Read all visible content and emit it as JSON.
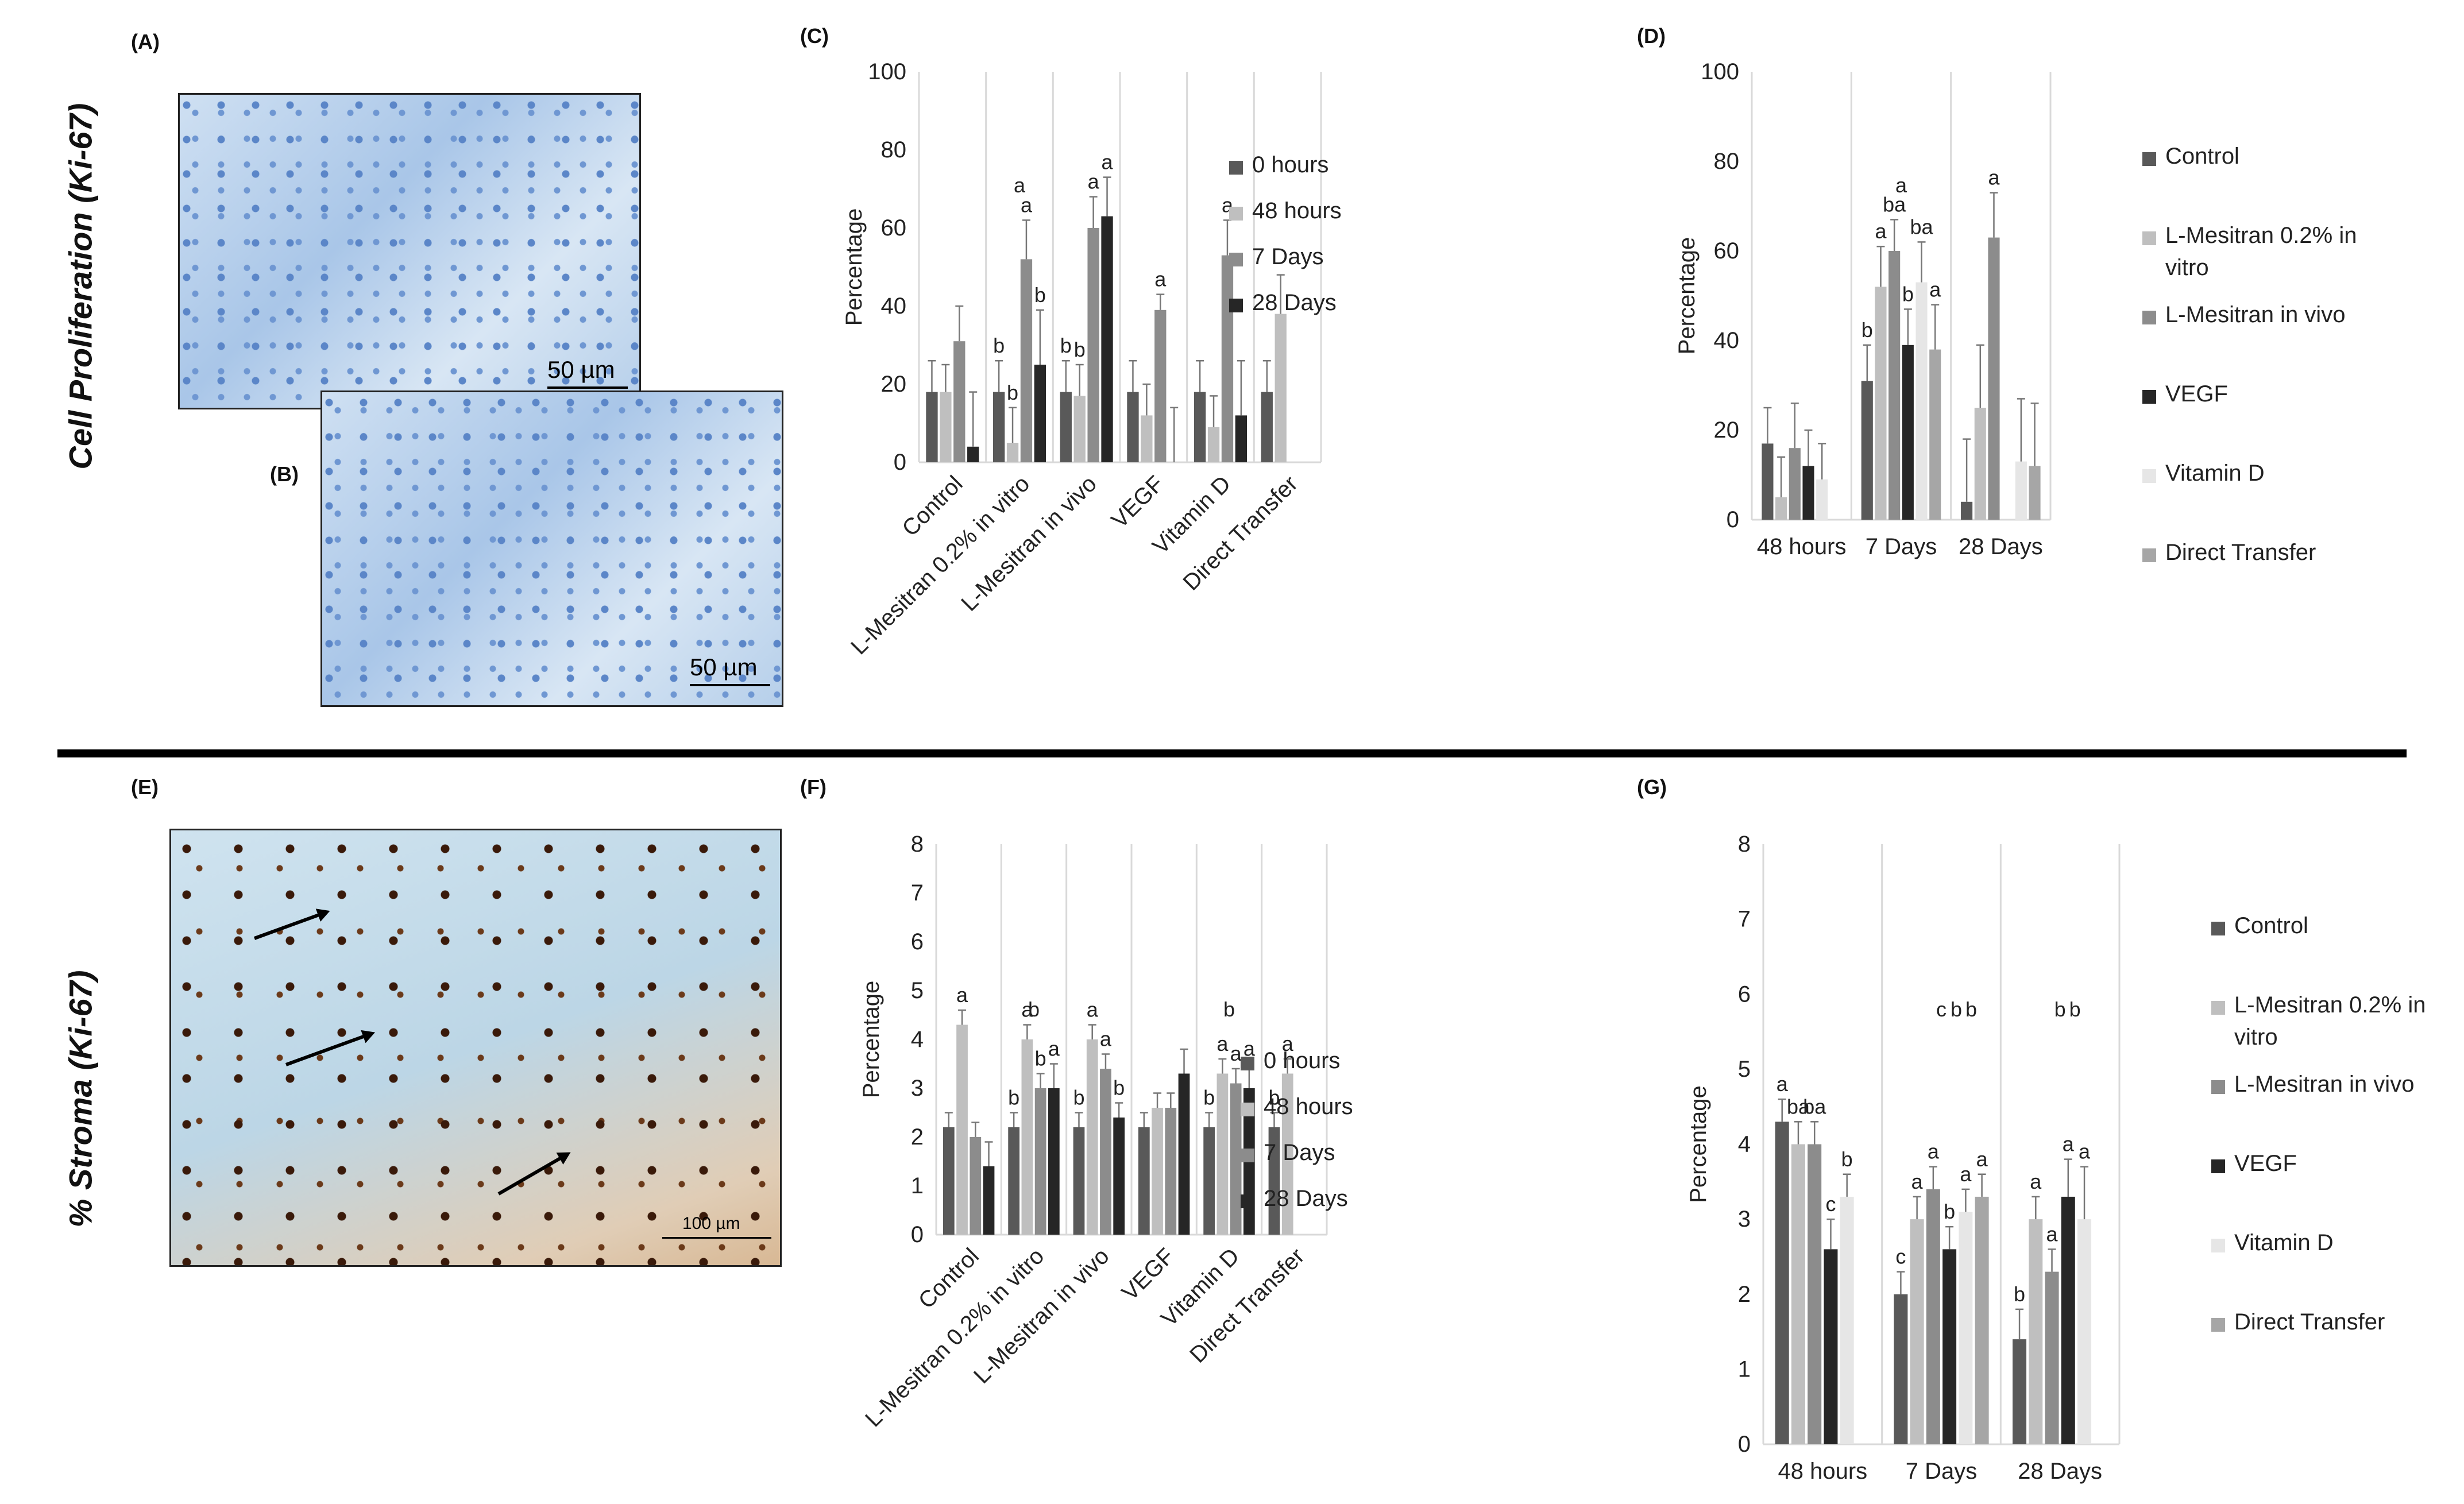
{
  "figure": {
    "panel_labels": [
      "(A)",
      "(B)",
      "(C)",
      "(D)",
      "(E)",
      "(F)",
      "(G)"
    ],
    "side_titles": [
      "Cell Proliferation (Ki-67)",
      "% Stroma (Ki-67)"
    ],
    "scale_labels": {
      "a": "50 µm",
      "b": "50 µm",
      "e": "100 µm"
    }
  },
  "chart_data": [
    {
      "id": "C",
      "type": "bar",
      "ylabel": "Percentage",
      "ylim": [
        0,
        100
      ],
      "yticks": [
        0,
        20,
        40,
        60,
        80,
        100
      ],
      "categories": [
        "Control",
        "L-Mesitran 0.2% in vitro",
        "L-Mesitran in vivo",
        "VEGF",
        "Vitamin D",
        "Direct Transfer"
      ],
      "series": [
        {
          "name": "0 hours",
          "color": "#595959",
          "values": [
            18,
            18,
            18,
            18,
            18,
            18
          ],
          "errors": [
            8,
            8,
            8,
            8,
            8,
            8
          ],
          "letters": [
            "",
            "b",
            "b",
            "",
            "",
            ""
          ]
        },
        {
          "name": "48 hours",
          "color": "#bfbfbf",
          "values": [
            18,
            5,
            17,
            12,
            9,
            38
          ],
          "errors": [
            7,
            9,
            8,
            8,
            8,
            10
          ],
          "letters": [
            "",
            "b",
            "b",
            "",
            "",
            ""
          ]
        },
        {
          "name": "7 Days",
          "color": "#8c8c8c",
          "values": [
            31,
            52,
            60,
            39,
            53,
            null
          ],
          "errors": [
            9,
            10,
            8,
            4,
            9,
            0
          ],
          "letters": [
            "",
            "a",
            "a",
            "a",
            "a",
            ""
          ]
        },
        {
          "name": "28 Days",
          "color": "#262626",
          "values": [
            4,
            25,
            63,
            null,
            12,
            null
          ],
          "errors": [
            14,
            14,
            10,
            14,
            14,
            0
          ],
          "letters": [
            "",
            "b",
            "a",
            "",
            "",
            ""
          ]
        }
      ],
      "extra_letters": [
        {
          "category": 1,
          "text": "a"
        }
      ],
      "legend": [
        "0 hours",
        "48 hours",
        "7 Days",
        "28 Days"
      ]
    },
    {
      "id": "D",
      "type": "bar",
      "ylabel": "Percentage",
      "ylim": [
        0,
        100
      ],
      "yticks": [
        0,
        20,
        40,
        60,
        80,
        100
      ],
      "categories": [
        "48 hours",
        "7 Days",
        "28 Days"
      ],
      "series": [
        {
          "name": "Control",
          "color": "#595959",
          "values": [
            17,
            31,
            4
          ],
          "errors": [
            8,
            8,
            14
          ],
          "letters": [
            "",
            "b",
            ""
          ]
        },
        {
          "name": "L-Mesitran 0.2% in vitro",
          "color": "#bfbfbf",
          "values": [
            5,
            52,
            25
          ],
          "errors": [
            9,
            9,
            14
          ],
          "letters": [
            "",
            "a",
            ""
          ]
        },
        {
          "name": "L-Mesitran in vivo",
          "color": "#8c8c8c",
          "values": [
            16,
            60,
            63
          ],
          "errors": [
            10,
            7,
            10
          ],
          "letters": [
            "",
            "ba",
            "a"
          ]
        },
        {
          "name": "VEGF",
          "color": "#262626",
          "values": [
            12,
            39,
            0
          ],
          "errors": [
            8,
            8,
            0
          ],
          "letters": [
            "",
            "b",
            ""
          ]
        },
        {
          "name": "Vitamin D",
          "color": "#e6e6e6",
          "values": [
            9,
            53,
            13
          ],
          "errors": [
            8,
            9,
            14
          ],
          "letters": [
            "",
            "ba",
            ""
          ]
        },
        {
          "name": "Direct Transfer",
          "color": "#a6a6a6",
          "values": [
            0,
            38,
            12
          ],
          "errors": [
            0,
            10,
            14
          ],
          "letters": [
            "",
            "a",
            ""
          ]
        }
      ],
      "extra_letters": [
        {
          "category": 1,
          "text": "a"
        }
      ],
      "legend": [
        "Control",
        "L-Mesitran 0.2% in vitro",
        "L-Mesitran in vivo",
        "VEGF",
        "Vitamin D",
        "Direct Transfer"
      ]
    },
    {
      "id": "F",
      "type": "bar",
      "ylabel": "Percentage",
      "ylim": [
        0,
        8
      ],
      "yticks": [
        0,
        1,
        2,
        3,
        4,
        5,
        6,
        7,
        8
      ],
      "categories": [
        "Control",
        "L-Mesitran 0.2% in vitro",
        "L-Mesitran in vivo",
        "VEGF",
        "Vitamin D",
        "Direct Transfer"
      ],
      "series": [
        {
          "name": "0 hours",
          "color": "#595959",
          "values": [
            2.2,
            2.2,
            2.2,
            2.2,
            2.2,
            2.2
          ],
          "errors": [
            0.3,
            0.3,
            0.3,
            0.3,
            0.3,
            0.3
          ],
          "letters": [
            "",
            "b",
            "b",
            "",
            "b",
            "b"
          ]
        },
        {
          "name": "48 hours",
          "color": "#bfbfbf",
          "values": [
            4.3,
            4.0,
            4.0,
            2.6,
            3.3,
            3.3
          ],
          "errors": [
            0.3,
            0.3,
            0.3,
            0.3,
            0.3,
            0.3
          ],
          "letters": [
            "a",
            "a",
            "a",
            "",
            "a",
            "a"
          ]
        },
        {
          "name": "7 Days",
          "color": "#8c8c8c",
          "values": [
            2.0,
            3.0,
            3.4,
            2.6,
            3.1,
            null
          ],
          "errors": [
            0.3,
            0.3,
            0.3,
            0.3,
            0.3,
            0
          ],
          "letters": [
            "",
            "b",
            "a",
            "",
            "a",
            ""
          ]
        },
        {
          "name": "28 Days",
          "color": "#262626",
          "values": [
            1.4,
            3.0,
            2.4,
            3.3,
            3.0,
            null
          ],
          "errors": [
            0.5,
            0.5,
            0.3,
            0.5,
            0.5,
            0
          ],
          "letters": [
            "",
            "a",
            "b",
            "",
            "a",
            ""
          ]
        }
      ],
      "extra_letters": [
        {
          "category": 1,
          "text": "b"
        },
        {
          "category": 4,
          "text": "b"
        }
      ],
      "legend": [
        "0 hours",
        "48 hours",
        "7 Days",
        "28 Days"
      ]
    },
    {
      "id": "G",
      "type": "bar",
      "ylabel": "Percentage",
      "ylim": [
        0,
        8
      ],
      "yticks": [
        0,
        1,
        2,
        3,
        4,
        5,
        6,
        7,
        8
      ],
      "categories": [
        "48 hours",
        "7 Days",
        "28 Days"
      ],
      "series": [
        {
          "name": "Control",
          "color": "#595959",
          "values": [
            4.3,
            2.0,
            1.4
          ],
          "errors": [
            0.3,
            0.3,
            0.4
          ],
          "letters": [
            "a",
            "c",
            "b"
          ]
        },
        {
          "name": "L-Mesitran 0.2% in vitro",
          "color": "#bfbfbf",
          "values": [
            4.0,
            3.0,
            3.0
          ],
          "errors": [
            0.3,
            0.3,
            0.3
          ],
          "letters": [
            "ba",
            "a",
            "a"
          ]
        },
        {
          "name": "L-Mesitran in vivo",
          "color": "#8c8c8c",
          "values": [
            4.0,
            3.4,
            2.3
          ],
          "errors": [
            0.3,
            0.3,
            0.3
          ],
          "letters": [
            "ba",
            "a",
            "a"
          ]
        },
        {
          "name": "VEGF",
          "color": "#262626",
          "values": [
            2.6,
            2.6,
            3.3
          ],
          "errors": [
            0.4,
            0.3,
            0.5
          ],
          "letters": [
            "c",
            "b",
            "a"
          ]
        },
        {
          "name": "Vitamin D",
          "color": "#e6e6e6",
          "values": [
            3.3,
            3.1,
            3.0
          ],
          "errors": [
            0.3,
            0.3,
            0.7
          ],
          "letters": [
            "b",
            "a",
            "a"
          ]
        },
        {
          "name": "Direct Transfer",
          "color": "#a6a6a6",
          "values": [
            0,
            3.3,
            0
          ],
          "errors": [
            0,
            0.3,
            0
          ],
          "letters": [
            "",
            "a",
            ""
          ]
        }
      ],
      "extra_letters": [
        {
          "category": 1,
          "text": "c"
        },
        {
          "category": 1,
          "text": "b"
        },
        {
          "category": 1,
          "text": "b"
        },
        {
          "category": 2,
          "text": "b"
        },
        {
          "category": 2,
          "text": "b"
        }
      ],
      "legend": [
        "Control",
        "L-Mesitran 0.2% in vitro",
        "L-Mesitran in vivo",
        "VEGF",
        "Vitamin D",
        "Direct Transfer"
      ]
    }
  ]
}
